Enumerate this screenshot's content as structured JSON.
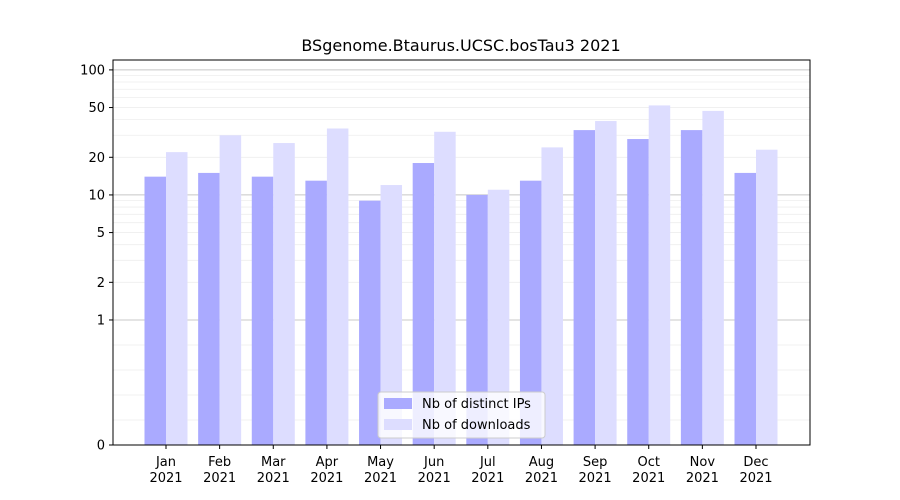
{
  "chart_data": {
    "type": "bar",
    "title": "BSgenome.Btaurus.UCSC.bosTau3 2021",
    "xlabel": "",
    "ylabel": "",
    "y_scale": "symlog",
    "ylim": [
      0,
      120
    ],
    "y_ticks": [
      0,
      1,
      2,
      5,
      10,
      20,
      50,
      100
    ],
    "categories": [
      "Jan",
      "Feb",
      "Mar",
      "Apr",
      "May",
      "Jun",
      "Jul",
      "Aug",
      "Sep",
      "Oct",
      "Nov",
      "Dec"
    ],
    "category_year": "2021",
    "series": [
      {
        "name": "Nb of distinct IPs",
        "color": "#aaaaff",
        "values": [
          14,
          15,
          14,
          13,
          9,
          18,
          10,
          13,
          33,
          28,
          33,
          15
        ]
      },
      {
        "name": "Nb of downloads",
        "color": "#ddddff",
        "values": [
          22,
          30,
          26,
          34,
          12,
          32,
          11,
          24,
          39,
          52,
          47,
          23
        ]
      }
    ],
    "grid": true,
    "legend_position": "lower-center"
  }
}
